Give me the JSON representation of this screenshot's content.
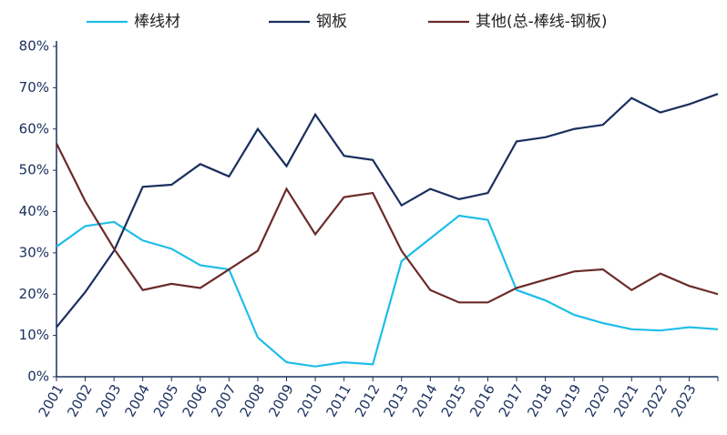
{
  "chart_data": {
    "type": "line",
    "categories": [
      "2001",
      "2002",
      "2003",
      "2004",
      "2005",
      "2006",
      "2007",
      "2008",
      "2009",
      "2010",
      "2011",
      "2012",
      "2013",
      "2014",
      "2015",
      "2016",
      "2017",
      "2018",
      "2019",
      "2020",
      "2021",
      "2022",
      "2023",
      null
    ],
    "series": [
      {
        "name": "棒线材",
        "color": "#1fbde8",
        "values": [
          31.5,
          36.5,
          37.5,
          33,
          31,
          27,
          26,
          9.5,
          3.5,
          2.5,
          3.5,
          3,
          28,
          33.5,
          39,
          38,
          21,
          18.5,
          15,
          13,
          11.5,
          11.2,
          12,
          11.5
        ]
      },
      {
        "name": "钢板",
        "color": "#1a2f5e",
        "values": [
          12,
          20.5,
          30.5,
          46,
          46.5,
          51.5,
          48.5,
          60,
          51,
          63.5,
          53.5,
          52.5,
          41.5,
          45.5,
          43,
          44.5,
          57,
          58,
          60,
          61,
          67.5,
          64,
          66,
          68.5
        ]
      },
      {
        "name": "其他(总-棒线-钢板)",
        "color": "#6b2a2a",
        "values": [
          56.5,
          42.5,
          31,
          21,
          22.5,
          21.5,
          26,
          30.5,
          45.5,
          34.5,
          43.5,
          44.5,
          30.5,
          21,
          18,
          18,
          21.5,
          23.5,
          25.5,
          26,
          21,
          25,
          22,
          20
        ]
      }
    ],
    "ylim": [
      0,
      80
    ],
    "yticks": [
      {
        "value": 0,
        "label": "0%"
      },
      {
        "value": 10,
        "label": "10%"
      },
      {
        "value": 20,
        "label": "20%"
      },
      {
        "value": 30,
        "label": "30%"
      },
      {
        "value": 40,
        "label": "40%"
      },
      {
        "value": 50,
        "label": "50%"
      },
      {
        "value": 60,
        "label": "60%"
      },
      {
        "value": 70,
        "label": "70%"
      },
      {
        "value": 80,
        "label": "80%"
      }
    ],
    "legend": "top"
  }
}
